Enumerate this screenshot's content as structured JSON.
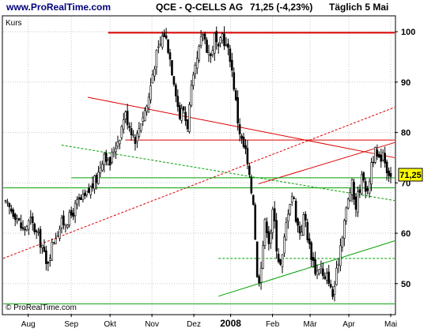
{
  "header": {
    "site": "www.ProRealTime.com",
    "symbol": "QCE - Q-CELLS AG",
    "price": "71,25 (-4,23%)",
    "period": "Täglich  5 Mai"
  },
  "chart_data": {
    "type": "candlestick",
    "panel_label": "Kurs",
    "copyright": "© ProRealTime.com",
    "price_tag": "71,25",
    "last_price": 71.25,
    "ylim": [
      44,
      103
    ],
    "yticks": [
      50,
      60,
      70,
      80,
      90,
      100
    ],
    "ytick_labels": [
      "50",
      "60",
      "70",
      "80",
      "90",
      "100"
    ],
    "x_range": [
      0,
      100
    ],
    "xticks": [
      {
        "label": "Aug",
        "x": 6.4
      },
      {
        "label": "Sep",
        "x": 17.4
      },
      {
        "label": "Okt",
        "x": 27.3
      },
      {
        "label": "Nov",
        "x": 38.0
      },
      {
        "label": "Dez",
        "x": 48.7
      },
      {
        "label": "2008",
        "x": 58.1,
        "bold": true
      },
      {
        "label": "Feb",
        "x": 68.8
      },
      {
        "label": "Mär",
        "x": 78.4
      },
      {
        "label": "Apr",
        "x": 88.3
      },
      {
        "label": "Mai",
        "x": 99.0
      }
    ],
    "price_path": [
      [
        0,
        66.0
      ],
      [
        3,
        64.0
      ],
      [
        5,
        60.5
      ],
      [
        7,
        62.5
      ],
      [
        10,
        57.5
      ],
      [
        11,
        53.5
      ],
      [
        13,
        59.0
      ],
      [
        15,
        62.0
      ],
      [
        17,
        63.0
      ],
      [
        19,
        66.0
      ],
      [
        21,
        67.0
      ],
      [
        22,
        68.5
      ],
      [
        24,
        71.0
      ],
      [
        25,
        74.0
      ],
      [
        26,
        76.5
      ],
      [
        27,
        73.0
      ],
      [
        28,
        76.0
      ],
      [
        30,
        80.0
      ],
      [
        31,
        84.0
      ],
      [
        33,
        80.0
      ],
      [
        34,
        78.5
      ],
      [
        35,
        82.0
      ],
      [
        37,
        86.0
      ],
      [
        38,
        91.0
      ],
      [
        39,
        95.0
      ],
      [
        40,
        97.0
      ],
      [
        41,
        100.0
      ],
      [
        42,
        97.5
      ],
      [
        43,
        93.0
      ],
      [
        44,
        89.0
      ],
      [
        45,
        83.0
      ],
      [
        46,
        85.0
      ],
      [
        47,
        81.0
      ],
      [
        48,
        88.0
      ],
      [
        49,
        92.0
      ],
      [
        50,
        96.0
      ],
      [
        51,
        100.0
      ],
      [
        52,
        97.0
      ],
      [
        53,
        95.0
      ],
      [
        54,
        99.0
      ],
      [
        55,
        96.0
      ],
      [
        56,
        99.5
      ],
      [
        57,
        97.0
      ],
      [
        58,
        95.0
      ],
      [
        59,
        89.0
      ],
      [
        60,
        82.0
      ],
      [
        61,
        78.0
      ],
      [
        62,
        76.0
      ],
      [
        63,
        70.0
      ],
      [
        64,
        66.0
      ],
      [
        65,
        49.0
      ],
      [
        66,
        55.0
      ],
      [
        67,
        63.0
      ],
      [
        68,
        58.0
      ],
      [
        69,
        65.0
      ],
      [
        70,
        56.0
      ],
      [
        71,
        53.0
      ],
      [
        72,
        60.0
      ],
      [
        73,
        66.0
      ],
      [
        74,
        68.0
      ],
      [
        75,
        62.0
      ],
      [
        76,
        60.0
      ],
      [
        77,
        64.0
      ],
      [
        78,
        58.0
      ],
      [
        79,
        55.0
      ],
      [
        80,
        52.0
      ],
      [
        81,
        54.0
      ],
      [
        82,
        50.0
      ],
      [
        83,
        52.0
      ],
      [
        84,
        47.0
      ],
      [
        85,
        51.0
      ],
      [
        86,
        57.0
      ],
      [
        87,
        62.0
      ],
      [
        88,
        66.0
      ],
      [
        89,
        70.0
      ],
      [
        90,
        65.0
      ],
      [
        91,
        69.0
      ],
      [
        92,
        72.0
      ],
      [
        93,
        67.0
      ],
      [
        94,
        74.0
      ],
      [
        95,
        76.0
      ],
      [
        96,
        74.0
      ],
      [
        97,
        76.5
      ],
      [
        98,
        73.0
      ],
      [
        99,
        71.25
      ]
    ],
    "lines": [
      {
        "color": "#dd0000",
        "width": 2,
        "x1": 26.8,
        "y1": 99.8,
        "x2": 100,
        "y2": 99.8
      },
      {
        "color": "#dd0000",
        "width": 1,
        "x1": 21.6,
        "y1": 87.0,
        "x2": 100,
        "y2": 75.0
      },
      {
        "color": "#dd0000",
        "width": 1,
        "x1": 31.2,
        "y1": 78.5,
        "x2": 100,
        "y2": 78.5
      },
      {
        "color": "#dd0000",
        "width": 1,
        "x1": 65.2,
        "y1": 69.8,
        "x2": 100,
        "y2": 78.0
      },
      {
        "color": "#dd0000",
        "width": 1,
        "dash": "3,2",
        "x1": 0,
        "y1": 55.0,
        "x2": 100,
        "y2": 85.0
      },
      {
        "color": "#00a000",
        "width": 1,
        "x1": 0,
        "y1": 69.0,
        "x2": 100,
        "y2": 69.0
      },
      {
        "color": "#00a000",
        "width": 1,
        "x1": 17.4,
        "y1": 71.0,
        "x2": 100,
        "y2": 71.0
      },
      {
        "color": "#00a000",
        "width": 1,
        "dash": "3,2",
        "x1": 14.9,
        "y1": 77.5,
        "x2": 100,
        "y2": 66.5
      },
      {
        "color": "#00a000",
        "width": 1,
        "dash": "3,2",
        "x1": 55.0,
        "y1": 55.0,
        "x2": 100,
        "y2": 55.0
      },
      {
        "color": "#00a000",
        "width": 1,
        "x1": 55.0,
        "y1": 47.5,
        "x2": 100,
        "y2": 58.5
      },
      {
        "color": "#00a000",
        "width": 1,
        "x1": 0,
        "y1": 46.0,
        "x2": 100,
        "y2": 46.0
      }
    ],
    "colors": {
      "candle": "#000000",
      "background": "#ffffff",
      "grid": "#c8c8c8",
      "price_tag_bg": "#ffff00",
      "header_site": "#00007a"
    },
    "grid": true
  }
}
